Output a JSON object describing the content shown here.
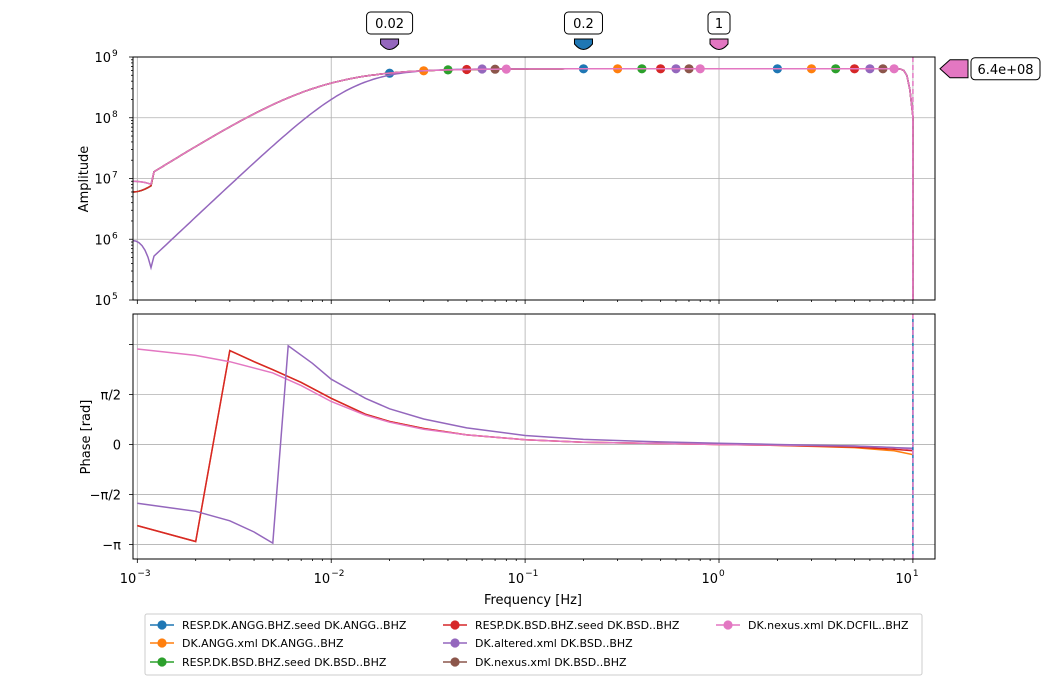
{
  "chart_data": [
    {
      "type": "line",
      "panel": "amplitude",
      "ylabel": "Amplitude",
      "xlabel": "",
      "x_scale": "log",
      "y_scale": "log",
      "xlim": [
        0.00095,
        13
      ],
      "ylim": [
        100000,
        1000000000
      ],
      "grid": true,
      "y_ticks": [
        {
          "base": "10",
          "exp": "5"
        },
        {
          "base": "10",
          "exp": "6"
        },
        {
          "base": "10",
          "exp": "7"
        },
        {
          "base": "10",
          "exp": "8"
        },
        {
          "base": "10",
          "exp": "9"
        }
      ],
      "markers": [
        {
          "label": "0.02",
          "x": 0.02,
          "color": "#9467bd"
        },
        {
          "label": "0.2",
          "x": 0.2,
          "color": "#1f77b4"
        },
        {
          "label": "1",
          "x": 1,
          "color": "#e377c2"
        }
      ],
      "side_marker": {
        "label": "6.4e+08",
        "y": 640000000,
        "color": "#e377c2"
      },
      "series": [
        {
          "name": "RESP.DK.ANGG.BHZ.seed DK.ANGG..BHZ",
          "color": "#1f77b4",
          "model": "resp",
          "low_y": 6000000,
          "dots": [
            0.02,
            0.2,
            2
          ]
        },
        {
          "name": "DK.ANGG.xml DK.ANGG..BHZ",
          "color": "#ff7f0e",
          "model": "resp",
          "low_y": 6000000,
          "dots": [
            0.03,
            0.3,
            3
          ]
        },
        {
          "name": "RESP.DK.BSD.BHZ.seed DK.BSD..BHZ",
          "color": "#2ca02c",
          "model": "resp",
          "low_y": 6000000,
          "dots": [
            0.04,
            0.4,
            4
          ]
        },
        {
          "name": "RESP.DK.BSD.BHZ.seed DK.BSD..BHZ",
          "color": "#d62728",
          "model": "resp",
          "low_y": 6000000,
          "dots": [
            0.05,
            0.5,
            5
          ]
        },
        {
          "name": "DK.altered.xml DK.BSD..BHZ",
          "color": "#9467bd",
          "model": "altered",
          "low_y": 950000,
          "dots": [
            0.06,
            0.6,
            6
          ]
        },
        {
          "name": "DK.nexus.xml DK.BSD..BHZ",
          "color": "#8c564b",
          "model": "resp",
          "low_y": 9000000,
          "dots": [
            0.07,
            0.7,
            7
          ]
        },
        {
          "name": "DK.nexus.xml DK.DCFIL..BHZ",
          "color": "#e377c2",
          "model": "resp",
          "low_y": 9000000,
          "dots": [
            0.08,
            0.8,
            8
          ]
        }
      ]
    },
    {
      "type": "line",
      "panel": "phase",
      "xlabel": "Frequency [Hz]",
      "ylabel": "Phase [rad]",
      "x_scale": "log",
      "xlim": [
        0.00095,
        13
      ],
      "ylim": [
        -3.6,
        4.1
      ],
      "grid": true,
      "x_ticks": [
        {
          "base": "10",
          "exp": "−3",
          "value": 0.001
        },
        {
          "base": "10",
          "exp": "−2",
          "value": 0.01
        },
        {
          "base": "10",
          "exp": "−1",
          "value": 0.1
        },
        {
          "base": "10",
          "exp": "0",
          "value": 1
        },
        {
          "base": "10",
          "exp": "1",
          "value": 10
        }
      ],
      "y_ticks": [
        {
          "label": "−π",
          "value": -3.14159
        },
        {
          "label": "−π/2",
          "value": -1.5708
        },
        {
          "label": "0",
          "value": 0
        },
        {
          "label": "π/2",
          "value": 1.5708
        }
      ],
      "series": [
        {
          "name": "DK.ANGG.xml DK.ANGG..BHZ",
          "color": "#ff7f0e",
          "points": [
            [
              0.001,
              -2.55
            ],
            [
              0.002,
              -3.05
            ],
            [
              0.003,
              2.95
            ],
            [
              0.004,
              2.6
            ],
            [
              0.005,
              2.35
            ],
            [
              0.007,
              1.95
            ],
            [
              0.01,
              1.45
            ],
            [
              0.015,
              0.95
            ],
            [
              0.02,
              0.72
            ],
            [
              0.03,
              0.5
            ],
            [
              0.05,
              0.3
            ],
            [
              0.1,
              0.15
            ],
            [
              0.2,
              0.07
            ],
            [
              0.5,
              0.03
            ],
            [
              1,
              0.0
            ],
            [
              2,
              -0.03
            ],
            [
              5,
              -0.1
            ],
            [
              8,
              -0.2
            ],
            [
              10,
              -0.32
            ]
          ]
        },
        {
          "name": "RESP.DK.BSD.BHZ.seed DK.BSD..BHZ",
          "color": "#d62728",
          "points": [
            [
              0.001,
              -2.55
            ],
            [
              0.002,
              -3.05
            ],
            [
              0.003,
              2.95
            ],
            [
              0.004,
              2.6
            ],
            [
              0.005,
              2.35
            ],
            [
              0.007,
              1.95
            ],
            [
              0.01,
              1.45
            ],
            [
              0.015,
              0.95
            ],
            [
              0.02,
              0.72
            ],
            [
              0.03,
              0.5
            ],
            [
              0.05,
              0.3
            ],
            [
              0.1,
              0.15
            ],
            [
              0.2,
              0.07
            ],
            [
              0.5,
              0.03
            ],
            [
              1,
              0.0
            ],
            [
              2,
              -0.03
            ],
            [
              5,
              -0.08
            ],
            [
              8,
              -0.15
            ],
            [
              10,
              -0.2
            ]
          ]
        },
        {
          "name": "DK.nexus.xml DK.DCFIL..BHZ",
          "color": "#e377c2",
          "points": [
            [
              0.001,
              3.0
            ],
            [
              0.002,
              2.8
            ],
            [
              0.003,
              2.6
            ],
            [
              0.005,
              2.25
            ],
            [
              0.007,
              1.85
            ],
            [
              0.01,
              1.35
            ],
            [
              0.015,
              0.92
            ],
            [
              0.02,
              0.7
            ],
            [
              0.03,
              0.48
            ],
            [
              0.05,
              0.3
            ],
            [
              0.1,
              0.15
            ],
            [
              0.2,
              0.07
            ],
            [
              0.5,
              0.03
            ],
            [
              1,
              0.0
            ],
            [
              2,
              -0.02
            ],
            [
              5,
              -0.05
            ],
            [
              8,
              -0.1
            ],
            [
              10,
              -0.15
            ]
          ]
        },
        {
          "name": "DK.altered.xml DK.BSD..BHZ",
          "color": "#9467bd",
          "points": [
            [
              0.001,
              -1.85
            ],
            [
              0.002,
              -2.1
            ],
            [
              0.003,
              -2.4
            ],
            [
              0.004,
              -2.75
            ],
            [
              0.005,
              -3.1
            ],
            [
              0.006,
              3.1
            ],
            [
              0.008,
              2.55
            ],
            [
              0.01,
              2.05
            ],
            [
              0.015,
              1.45
            ],
            [
              0.02,
              1.12
            ],
            [
              0.03,
              0.8
            ],
            [
              0.05,
              0.52
            ],
            [
              0.1,
              0.28
            ],
            [
              0.2,
              0.16
            ],
            [
              0.5,
              0.08
            ],
            [
              1,
              0.04
            ],
            [
              2,
              0.0
            ],
            [
              5,
              -0.05
            ],
            [
              8,
              -0.1
            ],
            [
              10,
              -0.12
            ]
          ]
        },
        {
          "name": "RESP.DK.ANGG.BHZ.seed DK.ANGG..BHZ",
          "color": "#1f77b4",
          "vertical_at": 10
        }
      ]
    }
  ],
  "legend": {
    "location": "bottom-center",
    "entries": [
      {
        "label": "RESP.DK.ANGG.BHZ.seed DK.ANGG..BHZ",
        "color": "#1f77b4"
      },
      {
        "label": "DK.ANGG.xml DK.ANGG..BHZ",
        "color": "#ff7f0e"
      },
      {
        "label": "RESP.DK.BSD.BHZ.seed DK.BSD..BHZ",
        "color": "#2ca02c"
      },
      {
        "label": "RESP.DK.BSD.BHZ.seed DK.BSD..BHZ",
        "color": "#d62728"
      },
      {
        "label": "DK.altered.xml DK.BSD..BHZ",
        "color": "#9467bd"
      },
      {
        "label": "DK.nexus.xml DK.BSD..BHZ",
        "color": "#8c564b"
      },
      {
        "label": "DK.nexus.xml DK.DCFIL..BHZ",
        "color": "#e377c2"
      }
    ]
  }
}
